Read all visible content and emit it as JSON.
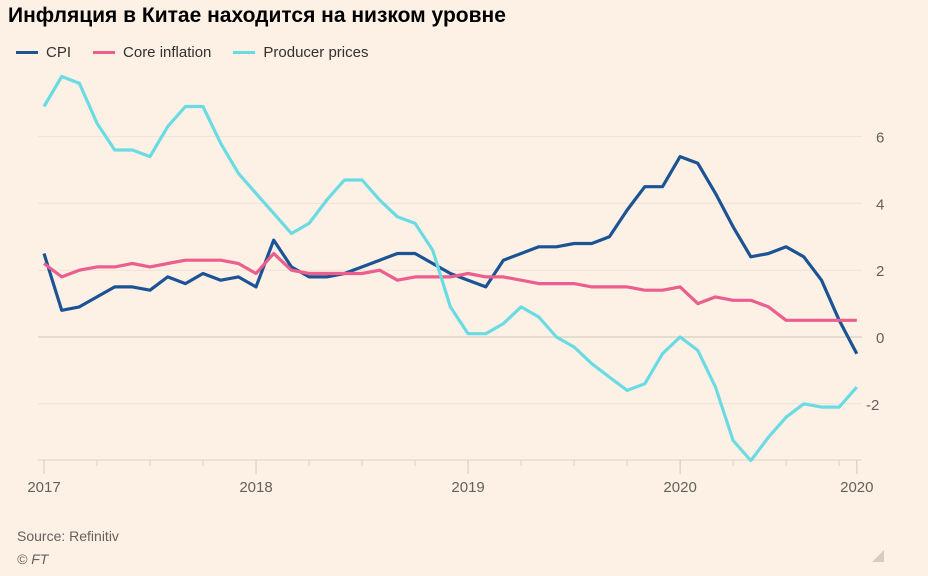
{
  "chart_data": {
    "type": "line",
    "title": "Инфляция в Китае находится на низком уровне",
    "xlabel": "",
    "ylabel": "",
    "x_start": "2017-01",
    "x_end": "2020-11",
    "x_ticks": [
      {
        "label": "2017",
        "month": 0
      },
      {
        "label": "2018",
        "month": 12
      },
      {
        "label": "2019",
        "month": 24
      },
      {
        "label": "2020",
        "month": 36
      },
      {
        "label": "2020",
        "month": 46
      }
    ],
    "y_ticks": [
      6,
      4,
      2,
      0,
      -2
    ],
    "ylim": [
      -3.7,
      8
    ],
    "grid": true,
    "legend_position": "top-left",
    "series": [
      {
        "name": "CPI",
        "color": "#1b5395",
        "values": [
          2.5,
          0.8,
          0.9,
          1.2,
          1.5,
          1.5,
          1.4,
          1.8,
          1.6,
          1.9,
          1.7,
          1.8,
          1.5,
          2.9,
          2.1,
          1.8,
          1.8,
          1.9,
          2.1,
          2.3,
          2.5,
          2.5,
          2.2,
          1.9,
          1.7,
          1.5,
          2.3,
          2.5,
          2.7,
          2.7,
          2.8,
          2.8,
          3.0,
          3.8,
          4.5,
          4.5,
          5.4,
          5.2,
          4.3,
          3.3,
          2.4,
          2.5,
          2.7,
          2.4,
          1.7,
          0.5,
          -0.5
        ]
      },
      {
        "name": "Core inflation",
        "color": "#eb5e8d",
        "values": [
          2.2,
          1.8,
          2.0,
          2.1,
          2.1,
          2.2,
          2.1,
          2.2,
          2.3,
          2.3,
          2.3,
          2.2,
          1.9,
          2.5,
          2.0,
          1.9,
          1.9,
          1.9,
          1.9,
          2.0,
          1.7,
          1.8,
          1.8,
          1.8,
          1.9,
          1.8,
          1.8,
          1.7,
          1.6,
          1.6,
          1.6,
          1.5,
          1.5,
          1.5,
          1.4,
          1.4,
          1.5,
          1.0,
          1.2,
          1.1,
          1.1,
          0.9,
          0.5,
          0.5,
          0.5,
          0.5,
          0.5
        ]
      },
      {
        "name": "Producer prices",
        "color": "#6bdbe3",
        "values": [
          6.9,
          7.8,
          7.6,
          6.4,
          5.6,
          5.6,
          5.4,
          6.3,
          6.9,
          6.9,
          5.8,
          4.9,
          4.3,
          3.7,
          3.1,
          3.4,
          4.1,
          4.7,
          4.7,
          4.1,
          3.6,
          3.4,
          2.6,
          0.9,
          0.1,
          0.1,
          0.4,
          0.9,
          0.6,
          0.0,
          -0.3,
          -0.8,
          -1.2,
          -1.6,
          -1.4,
          -0.5,
          0.0,
          -0.4,
          -1.5,
          -3.1,
          -3.7,
          -3.0,
          -2.4,
          -2.0,
          -2.1,
          -2.1,
          -1.5
        ]
      }
    ]
  },
  "footer": {
    "source": "Source: Refinitiv",
    "copyright": "© FT"
  }
}
